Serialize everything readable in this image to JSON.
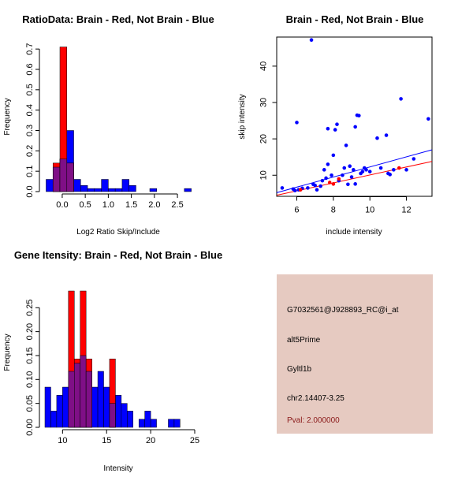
{
  "colors": {
    "red": "#ff0000",
    "blue": "#0000ff",
    "overlap": "#7f0f86",
    "panel_bg": "#e6cac1",
    "pval": "#8b1a1a"
  },
  "chart_data": [
    {
      "type": "histogram",
      "title": "RatioData: Brain - Red, Not Brain - Blue",
      "xlabel": "Log2 Ratio Skip/Include",
      "ylabel": "Frequency",
      "xlim": [
        -0.375,
        2.875
      ],
      "ylim": [
        0,
        0.72
      ],
      "xticks": [
        0.0,
        0.5,
        1.0,
        1.5,
        2.0,
        2.5
      ],
      "xtick_labels": [
        "0.0",
        "0.5",
        "1.0",
        "1.5",
        "2.0",
        "2.5"
      ],
      "yticks": [
        0.0,
        0.1,
        0.2,
        0.3,
        0.4,
        0.5,
        0.6,
        0.7
      ],
      "ytick_labels": [
        "0.0",
        "0.1",
        "0.2",
        "0.3",
        "0.4",
        "0.5",
        "0.6",
        "0.7"
      ],
      "bin_width": 0.15,
      "series": [
        {
          "name": "Not Brain",
          "color": "blue",
          "bins": [
            [
              -0.35,
              0.06
            ],
            [
              -0.2,
              0.12
            ],
            [
              -0.05,
              0.16
            ],
            [
              0.1,
              0.3
            ],
            [
              0.25,
              0.06
            ],
            [
              0.4,
              0.03
            ],
            [
              0.55,
              0.015
            ],
            [
              0.7,
              0.015
            ],
            [
              0.85,
              0.06
            ],
            [
              1.0,
              0.015
            ],
            [
              1.15,
              0.015
            ],
            [
              1.3,
              0.06
            ],
            [
              1.45,
              0.03
            ],
            [
              1.9,
              0.015
            ],
            [
              2.65,
              0.015
            ]
          ]
        },
        {
          "name": "Brain",
          "color": "red",
          "bins": [
            [
              -0.2,
              0.14
            ],
            [
              -0.05,
              0.71
            ],
            [
              0.1,
              0.14
            ]
          ]
        }
      ]
    },
    {
      "type": "scatter",
      "title": "Brain - Red, Not Brain - Blue",
      "xlabel": "include intensity",
      "ylabel": "skip intensity",
      "xlim": [
        4.9,
        13.4
      ],
      "ylim": [
        4.2,
        48.0
      ],
      "xticks": [
        6,
        8,
        10,
        12
      ],
      "xtick_labels": [
        "6",
        "8",
        "10",
        "12"
      ],
      "yticks": [
        10,
        20,
        30,
        40
      ],
      "ytick_labels": [
        "10",
        "20",
        "30",
        "40"
      ],
      "series": [
        {
          "name": "Not Brain",
          "color": "blue",
          "points": [
            [
              5.2,
              6.5
            ],
            [
              5.8,
              6.2
            ],
            [
              5.9,
              5.8
            ],
            [
              6.0,
              24.5
            ],
            [
              6.1,
              6.0
            ],
            [
              6.3,
              6.4
            ],
            [
              6.6,
              6.5
            ],
            [
              6.8,
              47.2
            ],
            [
              6.9,
              7.5
            ],
            [
              7.1,
              6.0
            ],
            [
              7.3,
              7.0
            ],
            [
              7.4,
              8.5
            ],
            [
              7.5,
              11.5
            ],
            [
              7.6,
              9.2
            ],
            [
              7.7,
              13.0
            ],
            [
              7.7,
              22.8
            ],
            [
              7.9,
              10.0
            ],
            [
              8.0,
              15.5
            ],
            [
              8.1,
              22.5
            ],
            [
              8.2,
              24.0
            ],
            [
              8.3,
              8.5
            ],
            [
              8.5,
              10.0
            ],
            [
              8.6,
              12.0
            ],
            [
              8.7,
              18.2
            ],
            [
              8.8,
              7.5
            ],
            [
              8.9,
              12.5
            ],
            [
              9.0,
              9.5
            ],
            [
              9.1,
              11.5
            ],
            [
              9.2,
              23.3
            ],
            [
              9.3,
              26.5
            ],
            [
              9.4,
              26.4
            ],
            [
              9.5,
              10.5
            ],
            [
              9.6,
              11.0
            ],
            [
              9.7,
              12.0
            ],
            [
              9.8,
              11.5
            ],
            [
              10.0,
              11.0
            ],
            [
              10.4,
              20.2
            ],
            [
              10.6,
              12.0
            ],
            [
              10.9,
              21.0
            ],
            [
              11.0,
              10.5
            ],
            [
              11.3,
              11.5
            ],
            [
              11.7,
              31.0
            ],
            [
              12.0,
              11.5
            ],
            [
              12.4,
              14.5
            ],
            [
              13.2,
              25.5
            ],
            [
              7.0,
              7.2
            ],
            [
              9.2,
              7.6
            ],
            [
              11.1,
              10.2
            ]
          ]
        },
        {
          "name": "Brain",
          "color": "red",
          "points": [
            [
              6.2,
              6.0
            ],
            [
              7.8,
              8.0
            ],
            [
              8.0,
              7.6
            ],
            [
              8.3,
              9.0
            ],
            [
              11.6,
              12.0
            ]
          ]
        }
      ],
      "fit_lines": [
        {
          "color": "blue",
          "x": [
            4.9,
            13.4
          ],
          "y": [
            5.2,
            17.0
          ]
        },
        {
          "color": "red",
          "x": [
            4.9,
            13.4
          ],
          "y": [
            4.5,
            13.8
          ]
        }
      ]
    },
    {
      "type": "histogram",
      "title": "Gene Itensity: Brain - Red, Not Brain - Blue",
      "xlabel": "Intensity",
      "ylabel": "Frequency",
      "xlim": [
        8.0,
        25.0
      ],
      "ylim": [
        0,
        0.29
      ],
      "xticks": [
        10,
        15,
        20,
        25
      ],
      "xtick_labels": [
        "10",
        "15",
        "20",
        "25"
      ],
      "yticks": [
        0.0,
        0.05,
        0.1,
        0.15,
        0.2,
        0.25
      ],
      "ytick_labels": [
        "0.00",
        "0.05",
        "0.10",
        "0.15",
        "0.20",
        "0.25"
      ],
      "bin_width": 0.667,
      "series": [
        {
          "name": "Not Brain",
          "color": "blue",
          "bins": [
            [
              8.0,
              0.084
            ],
            [
              8.667,
              0.034
            ],
            [
              9.333,
              0.067
            ],
            [
              10.0,
              0.084
            ],
            [
              10.667,
              0.117
            ],
            [
              11.333,
              0.134
            ],
            [
              12.0,
              0.15
            ],
            [
              12.667,
              0.117
            ],
            [
              13.333,
              0.084
            ],
            [
              14.0,
              0.117
            ],
            [
              14.667,
              0.084
            ],
            [
              15.333,
              0.05
            ],
            [
              16.0,
              0.067
            ],
            [
              16.667,
              0.05
            ],
            [
              17.333,
              0.034
            ],
            [
              18.667,
              0.017
            ],
            [
              19.333,
              0.034
            ],
            [
              20.0,
              0.017
            ],
            [
              22.0,
              0.017
            ],
            [
              22.667,
              0.017
            ]
          ]
        },
        {
          "name": "Brain",
          "color": "red",
          "bins": [
            [
              10.667,
              0.285
            ],
            [
              11.333,
              0.143
            ],
            [
              12.0,
              0.285
            ],
            [
              12.667,
              0.143
            ],
            [
              15.333,
              0.143
            ]
          ]
        }
      ]
    }
  ],
  "info_panel": {
    "probe_id": "G7032561@J928893_RC@i_at",
    "event_type": "alt5Prime",
    "gene": "Gyltl1b",
    "location": "chr2.14407-3.25",
    "pval": "Pval: 2.000000"
  }
}
